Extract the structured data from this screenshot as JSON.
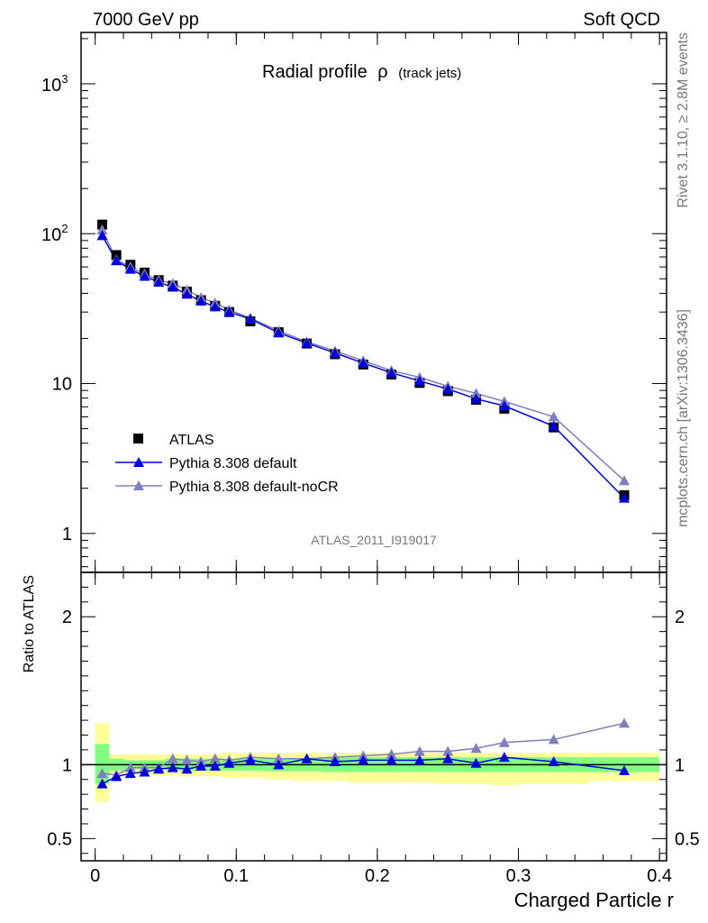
{
  "header": {
    "left": "7000 GeV pp",
    "right": "Soft QCD"
  },
  "side_labels": {
    "top": "Rivet 3.1.10, ≥ 2.8M events",
    "bottom": "mcplots.cern.ch [arXiv:1306.3436]"
  },
  "colors": {
    "atlas": "#000000",
    "default": "#0000dd",
    "nocr": "#7f7fbf",
    "band_inner": "#80ff80",
    "band_outer": "#ffff99"
  },
  "chart_data": [
    {
      "type": "line",
      "title": "Radial profile",
      "title_symbol": "ρ",
      "title_suffix": "(track jets)",
      "ylabel": "",
      "yscale": "log",
      "ylim": [
        0.55,
        2200
      ],
      "xlim": [
        -0.01,
        0.405
      ],
      "yticks": [
        1,
        10,
        100,
        1000
      ],
      "ytick_labels": [
        "1",
        "10",
        "",
        ""
      ],
      "ytick_power_labels": [
        {
          "value": 100,
          "exp": "2"
        },
        {
          "value": 1000,
          "exp": "3"
        }
      ],
      "watermark": "ATLAS_2011_I919017",
      "x": [
        0.005,
        0.015,
        0.025,
        0.035,
        0.045,
        0.055,
        0.065,
        0.075,
        0.085,
        0.095,
        0.11,
        0.13,
        0.15,
        0.17,
        0.19,
        0.21,
        0.23,
        0.25,
        0.27,
        0.29,
        0.325,
        0.375
      ],
      "series": [
        {
          "name": "ATLAS",
          "style": "square",
          "values": [
            115,
            72,
            62,
            55,
            49,
            45,
            41,
            36,
            33,
            30,
            26,
            22,
            18.5,
            15.7,
            13.4,
            11.5,
            10.1,
            8.9,
            7.8,
            6.8,
            5.1,
            1.8
          ]
        },
        {
          "name": "Pythia 8.308 default",
          "style": "triangle-line",
          "values": [
            97,
            66,
            58,
            52,
            47.5,
            44,
            39.5,
            35.5,
            32.5,
            30,
            27,
            21.8,
            18.6,
            16,
            13.7,
            11.8,
            10.4,
            9.2,
            7.9,
            7.1,
            5.2,
            1.72
          ]
        },
        {
          "name": "Pythia 8.308 default-noCR",
          "style": "triangle-line",
          "values": [
            106,
            67,
            60,
            54,
            49,
            46.5,
            42,
            37.5,
            34.5,
            31,
            27.3,
            22.5,
            19,
            16.5,
            14.2,
            12.2,
            11,
            9.6,
            8.6,
            7.6,
            6,
            2.25
          ]
        }
      ]
    },
    {
      "type": "line",
      "ylabel": "Ratio to ATLAS",
      "xlabel": "Charged Particle r",
      "ylim": [
        0.35,
        2.3
      ],
      "xlim": [
        -0.01,
        0.405
      ],
      "yticks": [
        0.5,
        1,
        2
      ],
      "ytick_labels": [
        "0.5",
        "1",
        "2"
      ],
      "xticks": [
        0,
        0.1,
        0.2,
        0.3,
        0.4
      ],
      "xtick_labels": [
        "0",
        "0.1",
        "0.2",
        "0.3",
        "0.4"
      ],
      "x": [
        0.005,
        0.015,
        0.025,
        0.035,
        0.045,
        0.055,
        0.065,
        0.075,
        0.085,
        0.095,
        0.11,
        0.13,
        0.15,
        0.17,
        0.19,
        0.21,
        0.23,
        0.25,
        0.27,
        0.29,
        0.325,
        0.375
      ],
      "bins": [
        0,
        0.01,
        0.02,
        0.03,
        0.04,
        0.05,
        0.06,
        0.07,
        0.08,
        0.09,
        0.1,
        0.12,
        0.14,
        0.16,
        0.18,
        0.2,
        0.22,
        0.24,
        0.26,
        0.28,
        0.3,
        0.35,
        0.4
      ],
      "band_inner": [
        [
          0.87,
          1.14
        ],
        [
          0.96,
          1.04
        ],
        [
          0.97,
          1.03
        ],
        [
          0.97,
          1.03
        ],
        [
          0.97,
          1.03
        ],
        [
          0.96,
          1.04
        ],
        [
          0.96,
          1.04
        ],
        [
          0.96,
          1.04
        ],
        [
          0.96,
          1.04
        ],
        [
          0.96,
          1.04
        ],
        [
          0.96,
          1.04
        ],
        [
          0.955,
          1.045
        ],
        [
          0.955,
          1.045
        ],
        [
          0.95,
          1.05
        ],
        [
          0.95,
          1.05
        ],
        [
          0.95,
          1.05
        ],
        [
          0.95,
          1.05
        ],
        [
          0.95,
          1.05
        ],
        [
          0.95,
          1.05
        ],
        [
          0.95,
          1.05
        ],
        [
          0.95,
          1.05
        ],
        [
          0.95,
          1.05
        ]
      ],
      "band_outer": [
        [
          0.75,
          1.28
        ],
        [
          0.94,
          1.07
        ],
        [
          0.94,
          1.07
        ],
        [
          0.93,
          1.07
        ],
        [
          0.93,
          1.07
        ],
        [
          0.93,
          1.07
        ],
        [
          0.92,
          1.07
        ],
        [
          0.92,
          1.07
        ],
        [
          0.92,
          1.07
        ],
        [
          0.91,
          1.08
        ],
        [
          0.91,
          1.08
        ],
        [
          0.9,
          1.08
        ],
        [
          0.89,
          1.08
        ],
        [
          0.89,
          1.08
        ],
        [
          0.88,
          1.08
        ],
        [
          0.88,
          1.08
        ],
        [
          0.88,
          1.08
        ],
        [
          0.87,
          1.08
        ],
        [
          0.87,
          1.08
        ],
        [
          0.86,
          1.08
        ],
        [
          0.87,
          1.08
        ],
        [
          0.89,
          1.08
        ]
      ],
      "series": [
        {
          "name": "Pythia 8.308 default",
          "values": [
            0.87,
            0.92,
            0.94,
            0.95,
            0.97,
            0.98,
            0.97,
            0.99,
            0.99,
            1.01,
            1.03,
            1.0,
            1.04,
            1.02,
            1.03,
            1.03,
            1.03,
            1.04,
            1.01,
            1.05,
            1.02,
            0.96
          ]
        },
        {
          "name": "Pythia 8.308 default-noCR",
          "values": [
            0.94,
            0.93,
            0.98,
            0.98,
            0.98,
            1.04,
            1.03,
            1.02,
            1.04,
            1.03,
            1.05,
            1.04,
            1.04,
            1.05,
            1.06,
            1.07,
            1.09,
            1.09,
            1.11,
            1.15,
            1.17,
            1.28
          ]
        }
      ]
    }
  ]
}
